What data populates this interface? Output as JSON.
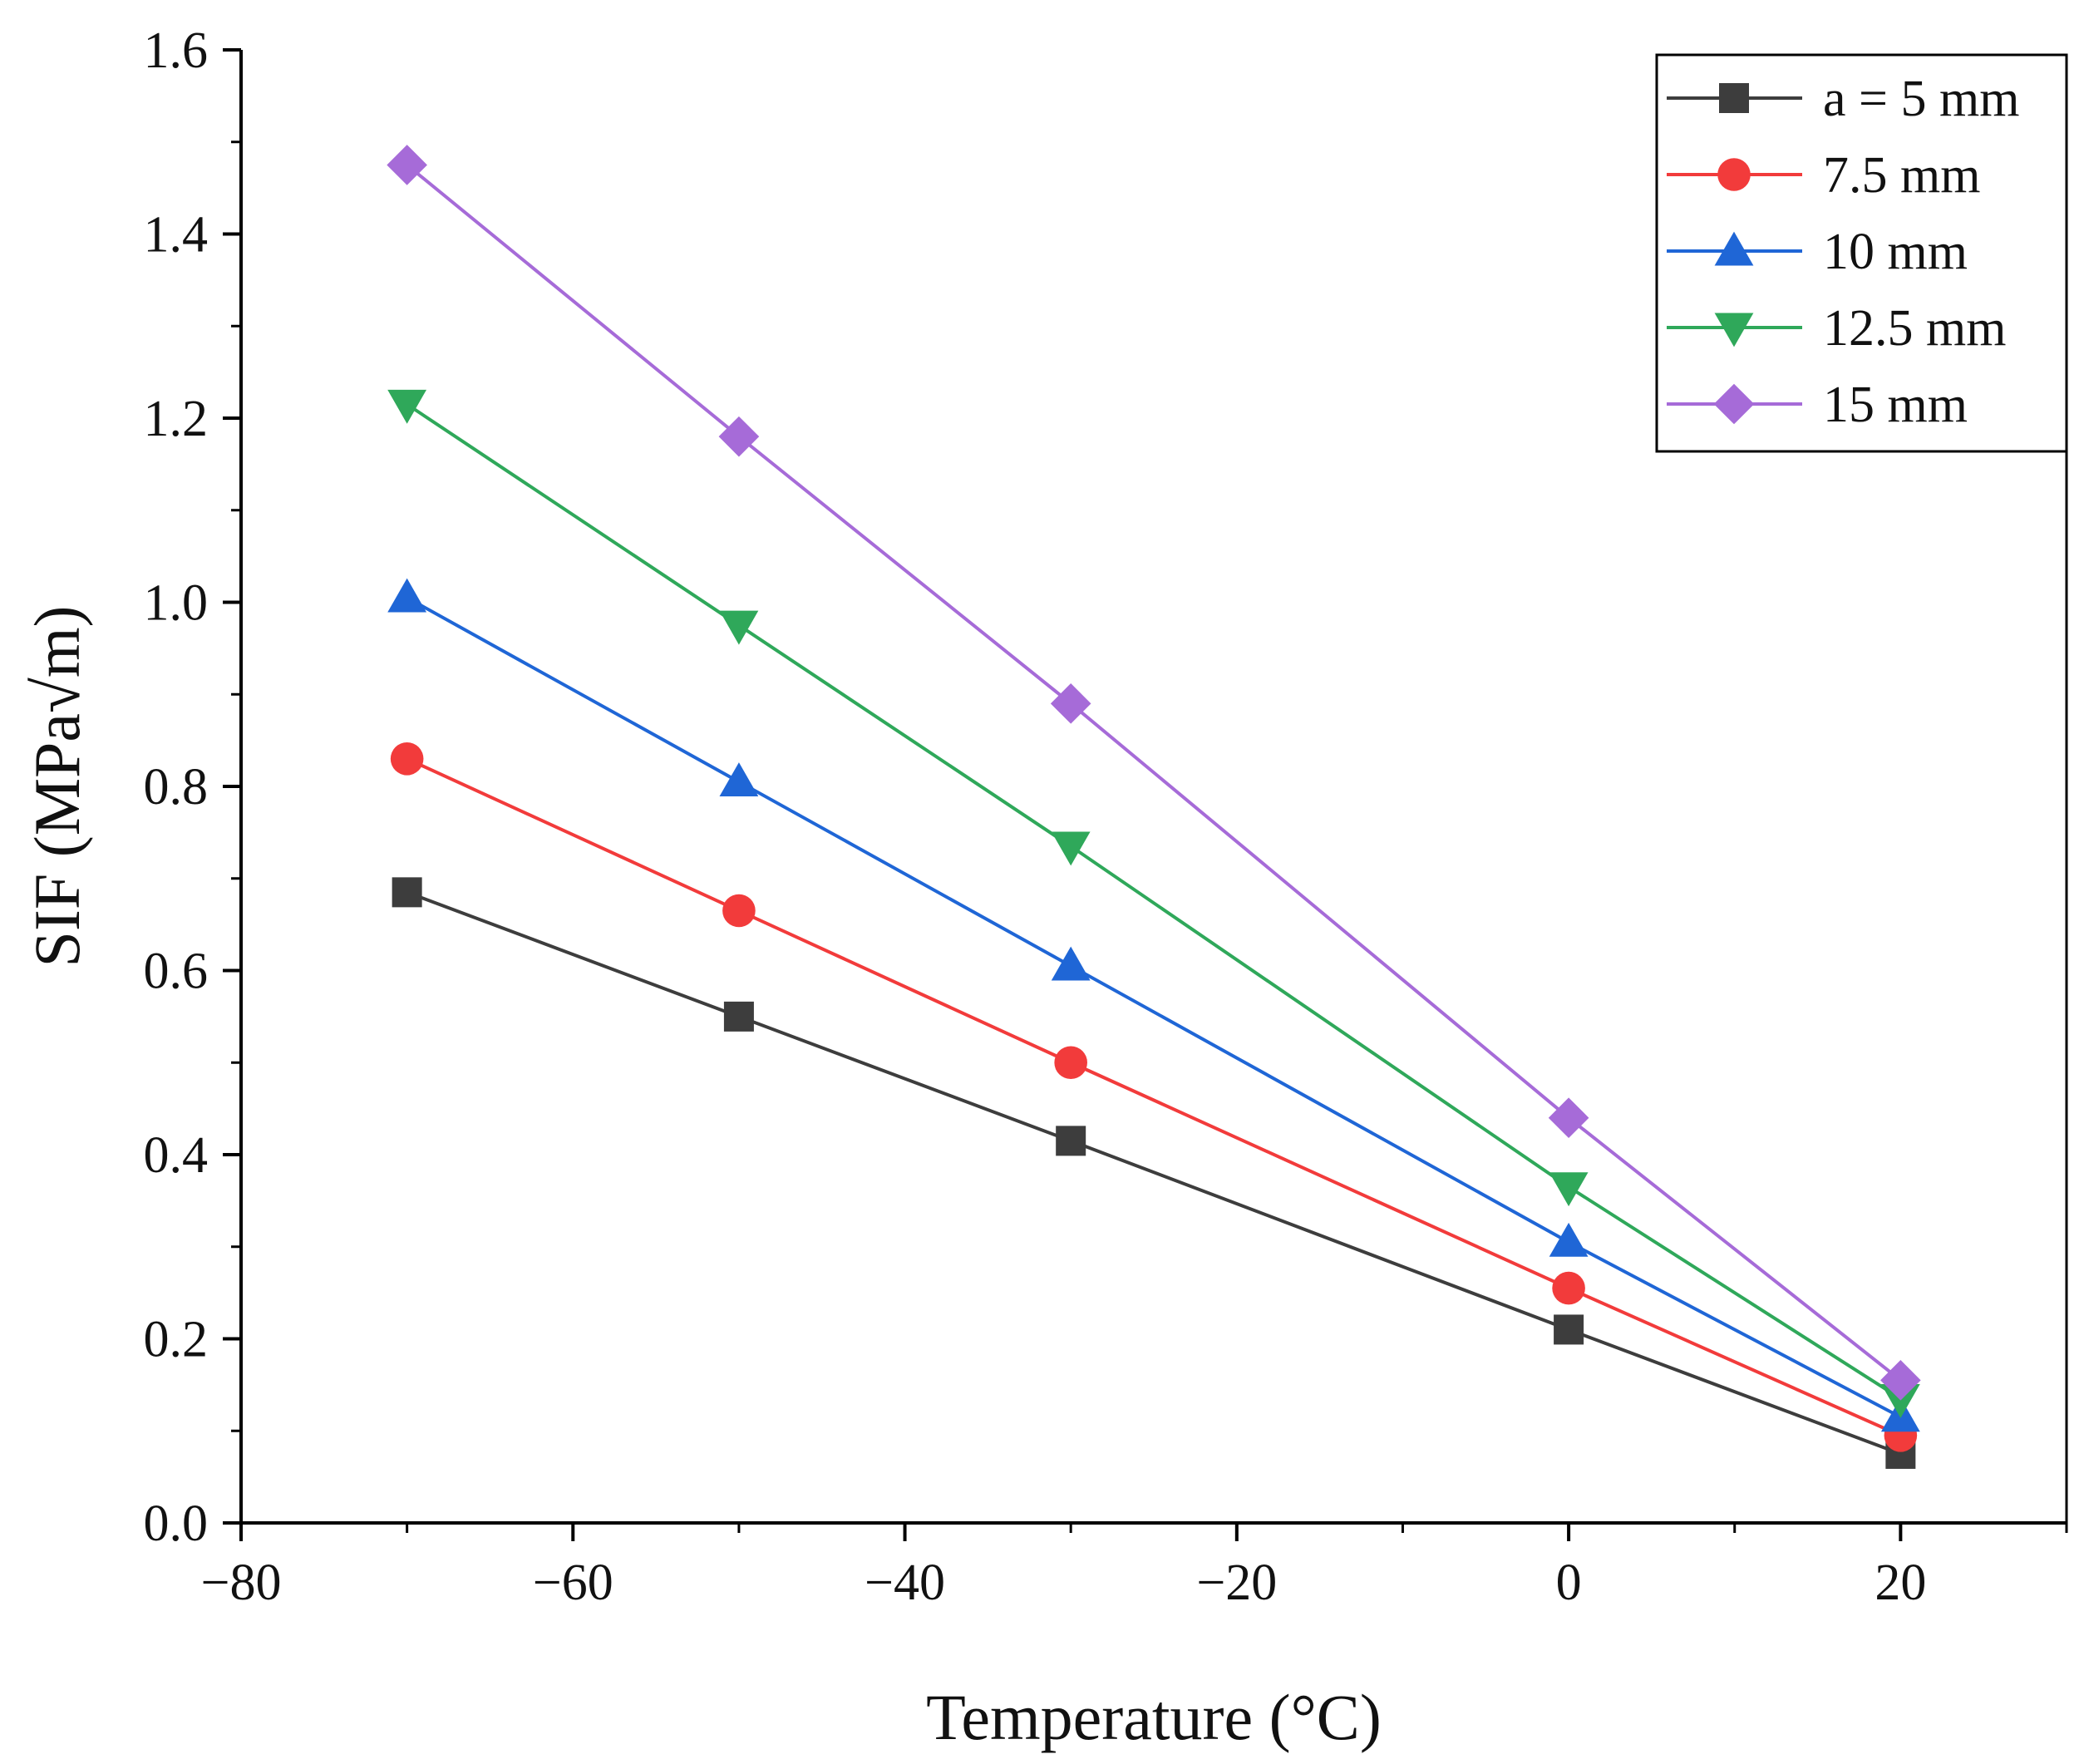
{
  "chart_data": {
    "type": "line",
    "title": "",
    "xlabel": "Temperature (°C)",
    "ylabel": "SIF (MPa√m)",
    "xlim": [
      -80,
      30
    ],
    "ylim": [
      0.0,
      1.6
    ],
    "x": [
      -70,
      -50,
      -30,
      0,
      20
    ],
    "x_ticks": [
      -80,
      -60,
      -40,
      -20,
      0,
      20
    ],
    "x_tick_labels": [
      "−80",
      "−60",
      "−40",
      "−20",
      "0",
      "20"
    ],
    "y_ticks": [
      0.0,
      0.2,
      0.4,
      0.6,
      0.8,
      1.0,
      1.2,
      1.4,
      1.6
    ],
    "y_tick_labels": [
      "0.0",
      "0.2",
      "0.4",
      "0.6",
      "0.8",
      "1.0",
      "1.2",
      "1.4",
      "1.6"
    ],
    "grid": false,
    "legend_position": "top-right",
    "series": [
      {
        "name": "a = 5 mm",
        "marker": "square",
        "color": "#3d3d3d",
        "values": [
          0.685,
          0.55,
          0.415,
          0.21,
          0.075
        ]
      },
      {
        "name": "7.5 mm",
        "marker": "circle",
        "color": "#f23b3b",
        "values": [
          0.83,
          0.665,
          0.5,
          0.255,
          0.095
        ]
      },
      {
        "name": "10 mm",
        "marker": "triangle-up",
        "color": "#1f66d6",
        "values": [
          1.005,
          0.805,
          0.605,
          0.305,
          0.115
        ]
      },
      {
        "name": "12.5 mm",
        "marker": "triangle-down",
        "color": "#2fa85a",
        "values": [
          1.215,
          0.975,
          0.735,
          0.365,
          0.135
        ]
      },
      {
        "name": "15 mm",
        "marker": "diamond",
        "color": "#a66bd8",
        "values": [
          1.475,
          1.18,
          0.89,
          0.44,
          0.155
        ]
      }
    ]
  }
}
